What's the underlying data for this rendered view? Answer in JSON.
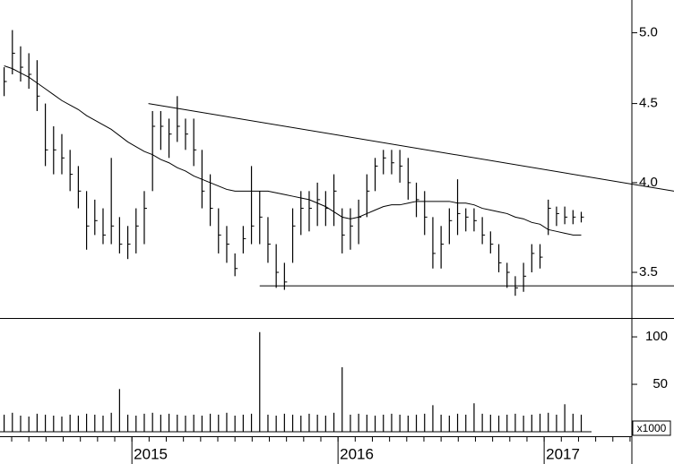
{
  "chart_data": {
    "type": "ohlc",
    "log": true,
    "x": [
      2014.38,
      2014.42,
      2014.46,
      2014.5,
      2014.54,
      2014.58,
      2014.62,
      2014.66,
      2014.7,
      2014.74,
      2014.78,
      2014.82,
      2014.86,
      2014.9,
      2014.94,
      2014.98,
      2015.02,
      2015.06,
      2015.1,
      2015.14,
      2015.18,
      2015.22,
      2015.26,
      2015.3,
      2015.34,
      2015.38,
      2015.42,
      2015.46,
      2015.5,
      2015.54,
      2015.58,
      2015.62,
      2015.66,
      2015.7,
      2015.74,
      2015.78,
      2015.82,
      2015.86,
      2015.9,
      2015.94,
      2015.98,
      2016.02,
      2016.06,
      2016.1,
      2016.14,
      2016.18,
      2016.22,
      2016.26,
      2016.3,
      2016.34,
      2016.38,
      2016.42,
      2016.46,
      2016.5,
      2016.54,
      2016.58,
      2016.62,
      2016.66,
      2016.7,
      2016.74,
      2016.78,
      2016.82,
      2016.86,
      2016.9,
      2016.94,
      2016.98,
      2017.02,
      2017.06,
      2017.1,
      2017.14,
      2017.18
    ],
    "high": [
      4.75,
      5.02,
      4.9,
      4.85,
      4.8,
      4.5,
      4.35,
      4.3,
      4.2,
      4.1,
      3.95,
      3.9,
      3.85,
      4.15,
      3.8,
      3.75,
      3.85,
      3.95,
      4.45,
      4.45,
      4.4,
      4.55,
      4.4,
      4.4,
      4.2,
      4.05,
      3.85,
      3.75,
      3.6,
      3.75,
      4.1,
      3.95,
      3.8,
      3.65,
      3.55,
      3.85,
      3.95,
      3.95,
      4.0,
      3.95,
      4.05,
      3.85,
      3.85,
      3.9,
      4.05,
      4.15,
      4.2,
      4.2,
      4.2,
      4.15,
      4.0,
      3.95,
      3.8,
      3.75,
      3.85,
      4.02,
      3.85,
      3.85,
      3.8,
      3.72,
      3.65,
      3.55,
      3.48,
      3.55,
      3.65,
      3.65,
      3.9,
      3.86,
      3.86,
      3.84,
      3.83
    ],
    "low": [
      4.55,
      4.7,
      4.65,
      4.6,
      4.45,
      4.1,
      4.05,
      4.05,
      3.95,
      3.85,
      3.62,
      3.7,
      3.65,
      3.65,
      3.6,
      3.57,
      3.6,
      3.65,
      3.95,
      4.2,
      4.15,
      4.25,
      4.2,
      4.1,
      3.85,
      3.75,
      3.6,
      3.55,
      3.48,
      3.6,
      3.65,
      3.65,
      3.55,
      3.42,
      3.41,
      3.55,
      3.7,
      3.72,
      3.75,
      3.75,
      3.75,
      3.6,
      3.62,
      3.65,
      3.8,
      3.95,
      4.05,
      4.05,
      4.0,
      3.9,
      3.8,
      3.7,
      3.52,
      3.52,
      3.65,
      3.7,
      3.72,
      3.72,
      3.65,
      3.6,
      3.5,
      3.42,
      3.38,
      3.4,
      3.5,
      3.52,
      3.7,
      3.75,
      3.76,
      3.76,
      3.77
    ],
    "close": [
      4.65,
      4.85,
      4.75,
      4.7,
      4.55,
      4.2,
      4.2,
      4.15,
      4.05,
      3.95,
      3.75,
      3.78,
      3.7,
      3.75,
      3.65,
      3.65,
      3.75,
      3.85,
      4.35,
      4.35,
      4.3,
      4.35,
      4.3,
      4.2,
      3.95,
      3.85,
      3.7,
      3.65,
      3.52,
      3.68,
      3.75,
      3.8,
      3.65,
      3.5,
      3.45,
      3.75,
      3.85,
      3.85,
      3.9,
      3.85,
      3.95,
      3.7,
      3.75,
      3.8,
      3.95,
      4.1,
      4.15,
      4.12,
      4.1,
      4.0,
      3.9,
      3.8,
      3.6,
      3.65,
      3.78,
      3.82,
      3.8,
      3.78,
      3.7,
      3.65,
      3.55,
      3.5,
      3.42,
      3.48,
      3.6,
      3.58,
      3.85,
      3.82,
      3.8,
      3.8,
      3.8
    ],
    "moving_average": [
      4.76,
      4.74,
      4.71,
      4.68,
      4.64,
      4.6,
      4.56,
      4.52,
      4.49,
      4.46,
      4.42,
      4.39,
      4.36,
      4.33,
      4.29,
      4.25,
      4.22,
      4.19,
      4.17,
      4.14,
      4.12,
      4.09,
      4.07,
      4.04,
      4.02,
      4.0,
      3.98,
      3.96,
      3.95,
      3.95,
      3.95,
      3.95,
      3.95,
      3.94,
      3.93,
      3.92,
      3.91,
      3.9,
      3.88,
      3.86,
      3.83,
      3.8,
      3.79,
      3.8,
      3.82,
      3.84,
      3.86,
      3.87,
      3.87,
      3.88,
      3.89,
      3.89,
      3.89,
      3.89,
      3.89,
      3.88,
      3.88,
      3.87,
      3.85,
      3.84,
      3.83,
      3.82,
      3.8,
      3.79,
      3.77,
      3.76,
      3.73,
      3.72,
      3.71,
      3.7,
      3.7
    ],
    "lines": [
      {
        "x": [
          2015.08,
          2017.63
        ],
        "y": [
          4.5,
          3.95
        ]
      },
      {
        "x": [
          2015.62,
          2017.63
        ],
        "y": [
          3.43,
          3.43
        ]
      }
    ],
    "xlim": [
      2014.36,
      2017.63
    ],
    "xticks": [
      2015,
      2016,
      2017
    ],
    "ylim": [
      3.27,
      5.25
    ],
    "yticks": [
      3.5,
      {
        "value": 4,
        "label": "4.0"
      },
      4.5,
      {
        "value": 5,
        "label": "5.0"
      }
    ],
    "volume": {
      "values": [
        18,
        20,
        17,
        16,
        19,
        18,
        17,
        16,
        18,
        17,
        19,
        18,
        17,
        20,
        45,
        18,
        17,
        19,
        20,
        18,
        19,
        18,
        17,
        18,
        17,
        19,
        18,
        20,
        17,
        18,
        19,
        105,
        18,
        17,
        19,
        18,
        17,
        19,
        18,
        17,
        20,
        68,
        18,
        19,
        18,
        17,
        18,
        19,
        18,
        17,
        18,
        19,
        28,
        18,
        17,
        19,
        18,
        30,
        19,
        18,
        17,
        18,
        19,
        17,
        18,
        19,
        20,
        18,
        29,
        19,
        18
      ],
      "ylim": [
        0,
        118
      ],
      "yticks": [
        50,
        100
      ],
      "unit_label": "x1000"
    }
  }
}
